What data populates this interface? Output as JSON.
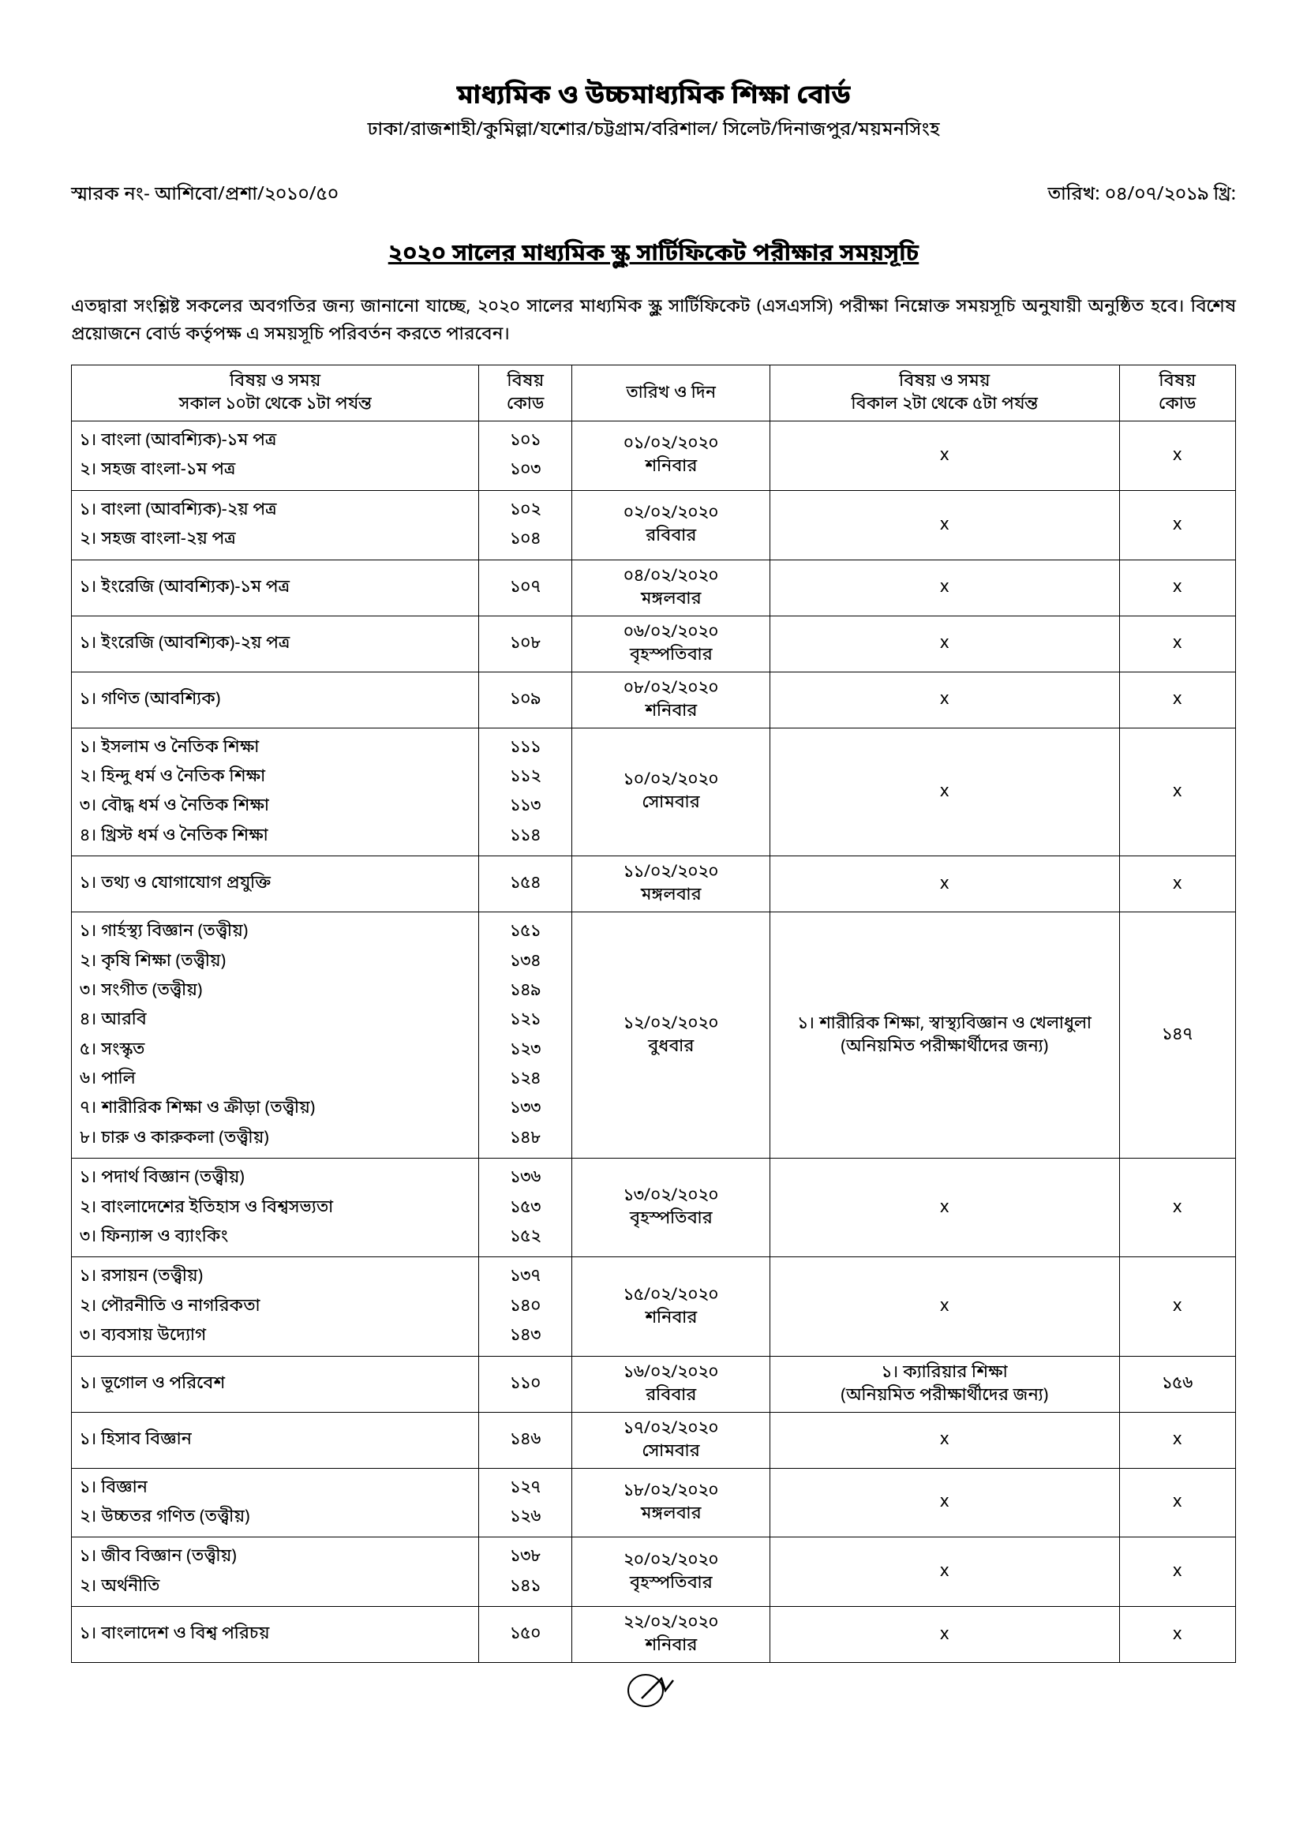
{
  "header": {
    "title": "মাধ্যমিক ও উচ্চমাধ্যমিক শিক্ষা বোর্ড",
    "subtitle": "ঢাকা/রাজশাহী/কুমিল্লা/যশোর/চট্টগ্রাম/বরিশাল/ সিলেট/দিনাজপুর/ময়মনসিংহ"
  },
  "ref": "স্মারক নং- আশিবো/প্রশা/২০১০/৫০",
  "date": "তারিখ: ০৪/০৭/২০১৯ খ্রি:",
  "doc_title": "২০২০ সালের মাধ্যমিক স্কুল সার্টিফিকেট পরীক্ষার  সময়সূচি",
  "intro": "এতদ্বারা সংশ্লিষ্ট সকলের অবগতির জন্য জানানো যাচ্ছে, ২০২০ সালের মাধ্যমিক স্কুল সার্টিফিকেট (এসএসসি) পরীক্ষা নিম্নোক্ত সময়সূচি অনুযায়ী অনুষ্ঠিত হবে। বিশেষ প্রয়োজনে বোর্ড কর্তৃপক্ষ এ সময়সূচি পরিবর্তন করতে পারবেন।",
  "thead": {
    "col1_l1": "বিষয় ও সময়",
    "col1_l2": "সকাল ১০টা থেকে ১টা পর্যন্ত",
    "col2_l1": "বিষয়",
    "col2_l2": "কোড",
    "col3": "তারিখ ও দিন",
    "col4_l1": "বিষয় ও সময়",
    "col4_l2": "বিকাল ২টা থেকে ৫টা পর্যন্ত",
    "col5_l1": "বিষয়",
    "col5_l2": "কোড"
  },
  "rows": [
    {
      "subjects": [
        "১। বাংলা (আবশ্যিক)-১ম পত্র",
        "২। সহজ বাংলা-১ম পত্র"
      ],
      "codes": [
        "১০১",
        "১০৩"
      ],
      "date": "০১/০২/২০২০",
      "day": "শনিবার",
      "subj2": "x",
      "code2": "x"
    },
    {
      "subjects": [
        "১। বাংলা (আবশ্যিক)-২য় পত্র",
        "২। সহজ বাংলা-২য় পত্র"
      ],
      "codes": [
        "১০২",
        "১০৪"
      ],
      "date": "০২/০২/২০২০",
      "day": "রবিবার",
      "subj2": "x",
      "code2": "x"
    },
    {
      "subjects": [
        "১। ইংরেজি (আবশ্যিক)-১ম পত্র"
      ],
      "codes": [
        "১০৭"
      ],
      "date": "০৪/০২/২০২০",
      "day": "মঙ্গলবার",
      "subj2": "x",
      "code2": "x"
    },
    {
      "subjects": [
        "১। ইংরেজি (আবশ্যিক)-২য় পত্র"
      ],
      "codes": [
        "১০৮"
      ],
      "date": "০৬/০২/২০২০",
      "day": "বৃহস্পতিবার",
      "subj2": "x",
      "code2": "x"
    },
    {
      "subjects": [
        "১। গণিত (আবশ্যিক)"
      ],
      "codes": [
        "১০৯"
      ],
      "date": "০৮/০২/২০২০",
      "day": "শনিবার",
      "subj2": "x",
      "code2": "x"
    },
    {
      "subjects": [
        "১। ইসলাম ও নৈতিক শিক্ষা",
        "২। হিন্দু ধর্ম ও নৈতিক শিক্ষা",
        "৩। বৌদ্ধ ধর্ম ও নৈতিক শিক্ষা",
        "৪। খ্রিস্ট ধর্ম ও নৈতিক শিক্ষা"
      ],
      "codes": [
        "১১১",
        "১১২",
        "১১৩",
        "১১৪"
      ],
      "date": "১০/০২/২০২০",
      "day": "সোমবার",
      "subj2": "x",
      "code2": "x"
    },
    {
      "subjects": [
        "১। তথ্য ও  যোগাযোগ প্রযুক্তি"
      ],
      "codes": [
        "১৫৪"
      ],
      "date": "১১/০২/২০২০",
      "day": "মঙ্গলবার",
      "subj2": "x",
      "code2": "x"
    },
    {
      "subjects": [
        "১। গার্হস্থ্য বিজ্ঞান (তত্ত্বীয়)",
        "২। কৃষি শিক্ষা (তত্ত্বীয়)",
        "৩। সংগীত (তত্ত্বীয়)",
        "৪। আরবি",
        "৫। সংস্কৃত",
        "৬। পালি",
        "৭। শারীরিক শিক্ষা ও ক্রীড়া (তত্ত্বীয়)",
        "৮। চারু ও কারুকলা (তত্ত্বীয়)"
      ],
      "codes": [
        "১৫১",
        "১৩৪",
        "১৪৯",
        "১২১",
        "১২৩",
        "১২৪",
        "১৩৩",
        "১৪৮"
      ],
      "date": "১২/০২/২০২০",
      "day": "বুধবার",
      "subj2": "১। শারীরিক শিক্ষা, স্বাস্থ্যবিজ্ঞান ও খেলাধুলা\n(অনিয়মিত পরীক্ষার্থীদের জন্য)",
      "code2": "১৪৭"
    },
    {
      "subjects": [
        "১। পদার্থ বিজ্ঞান (তত্ত্বীয়)",
        "২। বাংলাদেশের ইতিহাস ও বিশ্বসভ্যতা",
        "৩। ফিন্যান্স ও ব্যাংকিং"
      ],
      "codes": [
        "১৩৬",
        "১৫৩",
        "১৫২"
      ],
      "date": "১৩/০২/২০২০",
      "day": "বৃহস্পতিবার",
      "subj2": "x",
      "code2": "x"
    },
    {
      "subjects": [
        "১। রসায়ন (তত্ত্বীয়)",
        "২। পৌরনীতি ও নাগরিকতা",
        "৩। ব্যবসায় উদ্যোগ"
      ],
      "codes": [
        "১৩৭",
        "১৪০",
        "১৪৩"
      ],
      "date": "১৫/০২/২০২০",
      "day": "শনিবার",
      "subj2": "x",
      "code2": "x"
    },
    {
      "subjects": [
        "১। ভূগোল ও পরিবেশ"
      ],
      "codes": [
        "১১০"
      ],
      "date": "১৬/০২/২০২০",
      "day": "রবিবার",
      "subj2": "১। ক্যারিয়ার শিক্ষা\n(অনিয়মিত পরীক্ষার্থীদের জন্য)",
      "code2": "১৫৬"
    },
    {
      "subjects": [
        "১। হিসাব বিজ্ঞান"
      ],
      "codes": [
        "১৪৬"
      ],
      "date": "১৭/০২/২০২০",
      "day": "সোমবার",
      "subj2": "x",
      "code2": "x"
    },
    {
      "subjects": [
        "১। বিজ্ঞান",
        "২। উচ্চতর গণিত (তত্ত্বীয়)"
      ],
      "codes": [
        "১২৭",
        "১২৬"
      ],
      "date": "১৮/০২/২০২০",
      "day": "মঙ্গলবার",
      "subj2": "x",
      "code2": "x"
    },
    {
      "subjects": [
        "১। জীব বিজ্ঞান (তত্ত্বীয়)",
        "২। অর্থনীতি"
      ],
      "codes": [
        "১৩৮",
        "১৪১"
      ],
      "date": "২০/০২/২০২০",
      "day": "বৃহস্পতিবার",
      "subj2": "x",
      "code2": "x"
    },
    {
      "subjects": [
        "১। বাংলাদেশ ও বিশ্ব পরিচয়"
      ],
      "codes": [
        "১৫০"
      ],
      "date": "২২/০২/২০২০",
      "day": "শনিবার",
      "subj2": "x",
      "code2": "x"
    }
  ],
  "signature_mark": "⟋"
}
